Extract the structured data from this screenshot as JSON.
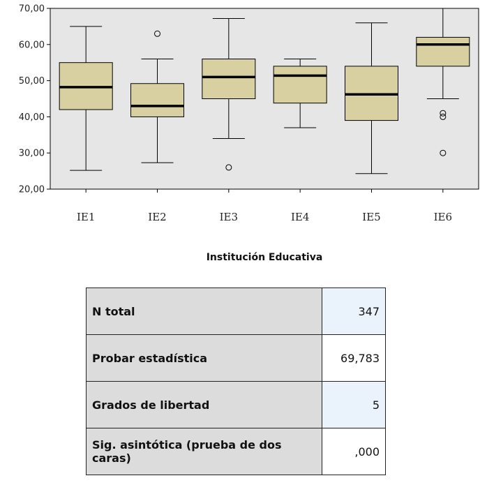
{
  "chart_data": {
    "type": "box",
    "xlabel": "Institución Educativa",
    "ylabel": "",
    "ylim": [
      20,
      70
    ],
    "yticks": [
      "20,00",
      "30,00",
      "40,00",
      "50,00",
      "60,00",
      "70,00"
    ],
    "ytick_values": [
      20,
      30,
      40,
      50,
      60,
      70
    ],
    "categories": [
      "IE1",
      "IE2",
      "IE3",
      "IE4",
      "IE5",
      "IE6"
    ],
    "boxes": [
      {
        "category": "IE1",
        "whisker_low": 25.2,
        "q1": 42.0,
        "median": 48.2,
        "q3": 55.0,
        "whisker_high": 65.0,
        "outliers": []
      },
      {
        "category": "IE2",
        "whisker_low": 27.3,
        "q1": 40.0,
        "median": 43.0,
        "q3": 49.2,
        "whisker_high": 56.0,
        "outliers": [
          63.0
        ]
      },
      {
        "category": "IE3",
        "whisker_low": 34.0,
        "q1": 45.0,
        "median": 51.0,
        "q3": 56.0,
        "whisker_high": 67.2,
        "outliers": [
          26.0
        ]
      },
      {
        "category": "IE4",
        "whisker_low": 37.0,
        "q1": 43.8,
        "median": 51.4,
        "q3": 54.0,
        "whisker_high": 56.0,
        "outliers": []
      },
      {
        "category": "IE5",
        "whisker_low": 24.3,
        "q1": 39.0,
        "median": 46.2,
        "q3": 54.0,
        "whisker_high": 66.0,
        "outliers": []
      },
      {
        "category": "IE6",
        "whisker_low": 45.0,
        "q1": 54.0,
        "median": 60.0,
        "q3": 62.0,
        "whisker_high": 70.0,
        "outliers": [
          41.0,
          40.0,
          30.0
        ]
      }
    ],
    "colors": {
      "plot_bg": "#e6e6e6",
      "box_fill": "#d8d0a0",
      "stroke": "#000000"
    }
  },
  "table": {
    "rows": [
      {
        "label": "N total",
        "value": "347"
      },
      {
        "label": "Probar estadística",
        "value": "69,783"
      },
      {
        "label": "Grados de libertad",
        "value": "5"
      },
      {
        "label": "Sig. asintótica (prueba de dos caras)",
        "value": ",000"
      }
    ]
  }
}
